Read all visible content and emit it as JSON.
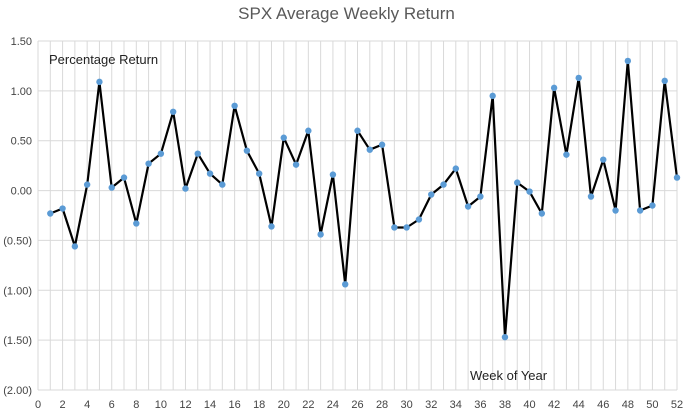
{
  "chart_data": {
    "type": "line",
    "title": "SPX Average Weekly Return",
    "ylabel": "Percentage Return",
    "xlabel": "Week of Year",
    "ylim": [
      -2.0,
      1.5
    ],
    "yticks": [
      -2.0,
      -1.5,
      -1.0,
      -0.5,
      0.0,
      0.5,
      1.0,
      1.5
    ],
    "ytick_labels": [
      "(2.00)",
      "(1.50)",
      "(1.00)",
      "(0.50)",
      "0.00",
      "0.50",
      "1.00",
      "1.50"
    ],
    "xlim": [
      0,
      52
    ],
    "xticks": [
      0,
      2,
      4,
      6,
      8,
      10,
      12,
      14,
      16,
      18,
      20,
      22,
      24,
      26,
      28,
      30,
      32,
      34,
      36,
      38,
      40,
      42,
      44,
      46,
      48,
      50,
      52
    ],
    "grid": true,
    "line_color": "#000000",
    "marker_color": "#5B9BD5",
    "x": [
      1,
      2,
      3,
      4,
      5,
      6,
      7,
      8,
      9,
      10,
      11,
      12,
      13,
      14,
      15,
      16,
      17,
      18,
      19,
      20,
      21,
      22,
      23,
      24,
      25,
      26,
      27,
      28,
      29,
      30,
      31,
      32,
      33,
      34,
      35,
      36,
      37,
      38,
      39,
      40,
      41,
      42,
      43,
      44,
      45,
      46,
      47,
      48,
      49,
      50,
      51,
      52
    ],
    "values": [
      -0.23,
      -0.18,
      -0.56,
      0.06,
      1.09,
      0.03,
      0.13,
      -0.33,
      0.27,
      0.37,
      0.79,
      0.02,
      0.37,
      0.17,
      0.06,
      0.85,
      0.4,
      0.17,
      -0.36,
      0.53,
      0.26,
      0.6,
      -0.44,
      0.16,
      -0.94,
      0.6,
      0.41,
      0.46,
      -0.37,
      -0.37,
      -0.29,
      -0.04,
      0.06,
      0.22,
      -0.16,
      -0.06,
      0.95,
      -1.47,
      0.08,
      -0.01,
      -0.23,
      1.03,
      0.36,
      1.13,
      -0.06,
      0.31,
      -0.2,
      1.3,
      -0.2,
      -0.15,
      1.1,
      0.13
    ]
  }
}
